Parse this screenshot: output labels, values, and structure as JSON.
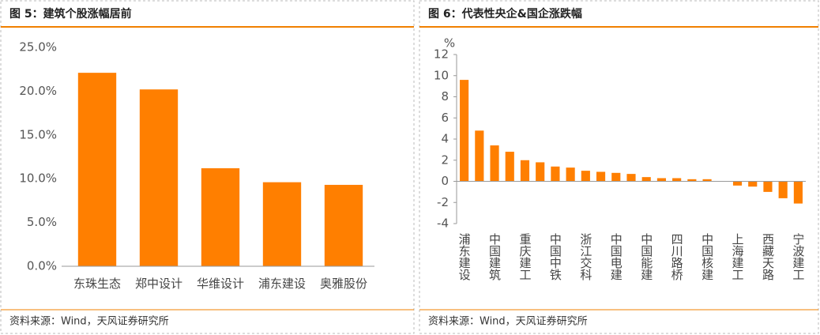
{
  "chart_data": [
    {
      "type": "bar",
      "title": "图 5：建筑个股涨幅居前",
      "categories": [
        "东珠生态",
        "郑中设计",
        "华维设计",
        "浦东建设",
        "奥雅股份"
      ],
      "values": [
        22.1,
        20.2,
        11.2,
        9.6,
        9.3
      ],
      "color": "#ff7f00",
      "ylim": [
        0,
        25
      ],
      "yticks": [
        {
          "value": 0,
          "label": "0.0%"
        },
        {
          "value": 5,
          "label": "5.0%"
        },
        {
          "value": 10,
          "label": "10.0%"
        },
        {
          "value": 15,
          "label": "15.0%"
        },
        {
          "value": 20,
          "label": "20.0%"
        },
        {
          "value": 25,
          "label": "25.0%"
        }
      ],
      "grid": false,
      "source": "资料来源：Wind，天风证券研究所"
    },
    {
      "type": "bar",
      "title": "图 6：代表性央企&国企涨跌幅",
      "y_unit": "%",
      "categories": [
        "浦东建设",
        null,
        "中国建筑",
        null,
        "重庆建工",
        null,
        "中国中铁",
        null,
        "浙江交科",
        null,
        "中国电建",
        null,
        "中国能建",
        null,
        "四川路桥",
        null,
        "中国核建",
        null,
        "上海建工",
        null,
        "西藏天路",
        null,
        "宁波建工"
      ],
      "values": [
        9.6,
        4.8,
        3.4,
        2.8,
        2.0,
        1.8,
        1.4,
        1.3,
        1.0,
        0.9,
        0.8,
        0.7,
        0.4,
        0.3,
        0.3,
        0.2,
        0.2,
        0,
        -0.4,
        -0.5,
        -1.0,
        -1.6,
        -2.1
      ],
      "color": "#ff7f00",
      "ylim": [
        -4,
        12
      ],
      "yticks": [
        -4,
        -2,
        0,
        2,
        4,
        6,
        8,
        10,
        12
      ],
      "grid": false,
      "source": "资料来源：Wind，天风证券研究所"
    }
  ]
}
